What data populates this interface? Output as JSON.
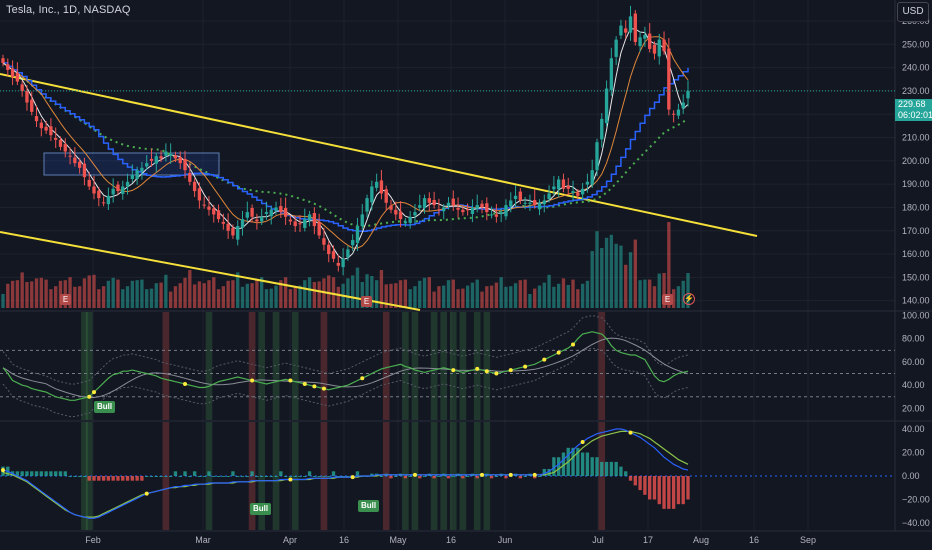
{
  "header": {
    "symbol": "Tesla, Inc., 1D, NASDAQ",
    "currency": "USD"
  },
  "last_price": {
    "value": "229.68",
    "countdown": "06:02:01"
  },
  "colors": {
    "bg": "#131722",
    "grid": "#1e222d",
    "up": "#26a69a",
    "down": "#ef5350",
    "trendline": "#f5e03a",
    "fast_ma": "#e8e8e8",
    "slow_ma": "#e0873a",
    "step_ma": "#2962ff",
    "dotted_ma": "#4caf50",
    "rsi_line": "#4caf50",
    "macd_line": "#2962ff",
    "signal_line": "#8bc34a"
  },
  "chart_data": [
    {
      "type": "candlestick",
      "title": "Tesla, Inc., 1D, NASDAQ",
      "x_tick_labels": [
        "Feb",
        "Mar",
        "Apr",
        "16",
        "May",
        "16",
        "Jun",
        "Jul",
        "17",
        "Aug",
        "16",
        "Sep"
      ],
      "y_tick_labels": [
        "140.00",
        "150.00",
        "160.00",
        "170.00",
        "180.00",
        "190.00",
        "200.00",
        "210.00",
        "220.00",
        "230.00",
        "240.00",
        "250.00",
        "260.00"
      ],
      "ylim": [
        136,
        269
      ],
      "close_series": [
        242,
        239,
        236,
        234,
        230,
        225,
        221,
        217,
        214,
        213,
        211,
        209,
        206,
        204,
        202,
        199,
        197,
        193,
        189,
        186,
        184,
        182,
        185,
        188,
        187,
        189,
        191,
        194,
        196,
        197,
        199,
        200,
        202,
        201,
        204,
        203,
        201,
        199,
        196,
        191,
        187,
        183,
        181,
        179,
        177,
        175,
        173,
        170,
        168,
        172,
        175,
        178,
        176,
        174,
        176,
        178,
        179,
        180,
        178,
        176,
        174,
        172,
        173,
        175,
        177,
        172,
        168,
        164,
        160,
        158,
        155,
        158,
        162,
        166,
        172,
        177,
        184,
        189,
        191,
        186,
        182,
        179,
        177,
        175,
        174,
        176,
        178,
        181,
        184,
        182,
        181,
        179,
        180,
        182,
        181,
        179,
        178,
        179,
        180,
        181,
        180,
        178,
        177,
        176,
        178,
        181,
        183,
        185,
        183,
        182,
        182,
        181,
        182,
        183,
        186,
        189,
        192,
        188,
        188,
        187,
        185,
        188,
        191,
        196,
        208,
        218,
        231,
        244,
        252,
        258,
        255,
        262,
        251,
        253,
        254,
        248,
        246,
        252,
        247,
        222,
        220,
        222,
        225,
        230
      ],
      "overlays": [
        "fast moving average",
        "slow moving average",
        "stepped moving average",
        "dotted moving average",
        "descending trendline",
        "lower trendline"
      ],
      "volume": "bars below price, coloured by candle direction"
    },
    {
      "type": "line",
      "title": "",
      "y_tick_labels": [
        "20.00",
        "40.00",
        "60.00",
        "80.00",
        "100.00"
      ],
      "ylim": [
        10,
        103
      ],
      "reference_levels": [
        30,
        50,
        70
      ],
      "rsi": [
        55,
        50,
        44,
        42,
        40,
        39,
        37,
        36,
        35,
        34,
        32,
        30,
        29,
        28,
        27,
        27,
        28,
        29,
        30,
        34,
        38,
        42,
        46,
        49,
        50,
        52,
        52,
        53,
        52,
        51,
        50,
        49,
        48,
        46,
        45,
        44,
        43,
        42,
        41,
        40,
        39,
        38,
        38,
        39,
        41,
        43,
        44,
        45,
        46,
        47,
        46,
        45,
        44,
        43,
        42,
        41,
        42,
        43,
        44,
        45,
        44,
        43,
        42,
        41,
        40,
        39,
        38,
        37,
        36,
        37,
        38,
        39,
        40,
        42,
        44,
        46,
        48,
        50,
        52,
        54,
        55,
        56,
        57,
        58,
        56,
        55,
        53,
        52,
        51,
        52,
        53,
        54,
        55,
        54,
        53,
        52,
        51,
        52,
        53,
        54,
        53,
        52,
        51,
        50,
        51,
        52,
        53,
        54,
        55,
        56,
        57,
        58,
        60,
        62,
        64,
        66,
        68,
        70,
        72,
        75,
        80,
        84,
        85,
        86,
        85,
        84,
        80,
        74,
        70,
        68,
        67,
        66,
        66,
        64,
        62,
        55,
        48,
        44,
        43,
        45,
        48,
        50,
        51,
        52
      ],
      "signal_labels": [
        "Bull"
      ]
    },
    {
      "type": "line",
      "title": "",
      "y_tick_labels": [
        "40.00",
        "20.00",
        "0.00",
        "−20.00",
        "−40.00"
      ],
      "ylim": [
        -46,
        46
      ],
      "macd": [
        5,
        4,
        2,
        0,
        -2,
        -4,
        -7,
        -10,
        -13,
        -16,
        -19,
        -22,
        -25,
        -28,
        -31,
        -33,
        -34,
        -35,
        -36,
        -36,
        -35,
        -33,
        -31,
        -29,
        -27,
        -25,
        -23,
        -21,
        -19,
        -17,
        -15,
        -14,
        -13,
        -12,
        -11,
        -10,
        -9,
        -9,
        -8,
        -8,
        -7,
        -7,
        -7,
        -6,
        -6,
        -6,
        -6,
        -6,
        -5,
        -5,
        -5,
        -5,
        -4,
        -4,
        -4,
        -4,
        -4,
        -4,
        -3,
        -3,
        -3,
        -3,
        -3,
        -3,
        -2,
        -2,
        -2,
        -2,
        -2,
        -1,
        -1,
        -1,
        -1,
        -1,
        0,
        0,
        0,
        0,
        1,
        1,
        1,
        1,
        1,
        1,
        1,
        1,
        1,
        1,
        1,
        1,
        1,
        1,
        1,
        1,
        1,
        1,
        1,
        1,
        1,
        1,
        1,
        1,
        1,
        1,
        1,
        1,
        1,
        1,
        1,
        1,
        1,
        1,
        1,
        2,
        4,
        7,
        10,
        14,
        18,
        22,
        26,
        29,
        32,
        34,
        36,
        37,
        38,
        39,
        40,
        40,
        39,
        37,
        35,
        33,
        30,
        27,
        24,
        20,
        16,
        13,
        10,
        8,
        6,
        5
      ],
      "signal": [
        3,
        2,
        1,
        -1,
        -3,
        -5,
        -8,
        -11,
        -14,
        -17,
        -20,
        -23,
        -26,
        -29,
        -31,
        -33,
        -34,
        -35,
        -35,
        -35,
        -34,
        -32,
        -30,
        -28,
        -26,
        -24,
        -22,
        -20,
        -18,
        -16,
        -15,
        -14,
        -13,
        -12,
        -11,
        -10,
        -10,
        -9,
        -9,
        -8,
        -8,
        -7,
        -7,
        -7,
        -6,
        -6,
        -6,
        -6,
        -6,
        -5,
        -5,
        -5,
        -5,
        -4,
        -4,
        -4,
        -4,
        -4,
        -4,
        -3,
        -3,
        -3,
        -3,
        -3,
        -3,
        -2,
        -2,
        -2,
        -2,
        -2,
        -1,
        -1,
        -1,
        -1,
        -1,
        0,
        0,
        0,
        0,
        1,
        1,
        1,
        1,
        1,
        1,
        1,
        1,
        1,
        1,
        1,
        1,
        1,
        1,
        1,
        1,
        1,
        1,
        1,
        1,
        1,
        1,
        1,
        1,
        1,
        1,
        1,
        1,
        1,
        1,
        1,
        1,
        1,
        1,
        1,
        2,
        3,
        6,
        9,
        12,
        16,
        20,
        24,
        27,
        30,
        32,
        34,
        35,
        36,
        37,
        38,
        38,
        38,
        37,
        36,
        34,
        32,
        29,
        26,
        23,
        20,
        17,
        14,
        12,
        10
      ],
      "signal_labels": [
        "Bull",
        "Bull"
      ]
    }
  ]
}
